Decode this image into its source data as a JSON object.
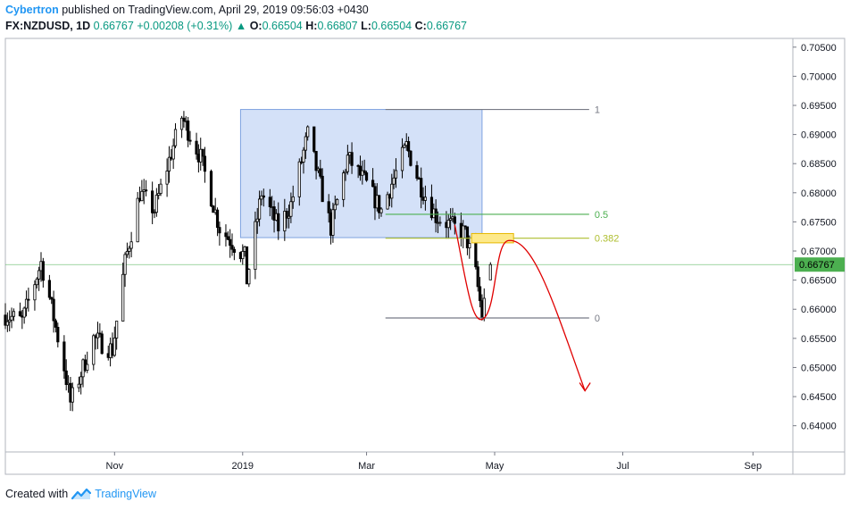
{
  "header": {
    "author": "Cybertron",
    "published_text": "published on TradingView.com, April 29, 2019 09:56:03 +0430",
    "symbol": "FX:NZDUSD, 1D",
    "last": "0.66767",
    "change": "+0.00208 (+0.31%)",
    "open_label": "O:",
    "open": "0.66504",
    "high_label": "H:",
    "high": "0.66807",
    "low_label": "L:",
    "low": "0.66504",
    "close_label": "C:",
    "close": "0.66767"
  },
  "footer": {
    "created_with": "Created with",
    "brand": "TradingView"
  },
  "colors": {
    "candle": "#000000",
    "rect_fill": "#aac4f2",
    "rect_stroke": "#7fa3e0",
    "fib_1": "#787b86",
    "fib_05": "#4caf50",
    "fib_0382": "#aebe2e",
    "fib_0": "#787b86",
    "price_line": "#4caf50",
    "price_badge": "#4caf50",
    "forecast_curve": "#e00000",
    "yellow_box": "#fde98a"
  },
  "chart_data": {
    "type": "candlestick",
    "symbol": "FX:NZDUSD",
    "timeframe": "1D",
    "price_axis": {
      "ticks": [
        "0.70500",
        "0.70000",
        "0.69500",
        "0.69000",
        "0.68500",
        "0.68000",
        "0.67500",
        "0.67000",
        "0.66500",
        "0.66000",
        "0.65500",
        "0.65000",
        "0.64500",
        "0.64000"
      ],
      "ylim": [
        0.6355,
        0.7065
      ],
      "current_price": "0.66767"
    },
    "time_axis": {
      "ticks": [
        {
          "label": "Nov",
          "date": "2018-11-01"
        },
        {
          "label": "2019",
          "date": "2019-01-01"
        },
        {
          "label": "Mar",
          "date": "2019-03-01"
        },
        {
          "label": "May",
          "date": "2019-05-01"
        },
        {
          "label": "Jul",
          "date": "2019-07-01"
        },
        {
          "label": "Sep",
          "date": "2019-09-01"
        }
      ],
      "xlim": [
        "2018-09-10",
        "2019-09-20"
      ]
    },
    "anchors": [
      {
        "date": "2018-09-10",
        "close": 0.659
      },
      {
        "date": "2018-09-18",
        "close": 0.658
      },
      {
        "date": "2018-09-27",
        "close": 0.668
      },
      {
        "date": "2018-10-01",
        "close": 0.662
      },
      {
        "date": "2018-10-08",
        "close": 0.65
      },
      {
        "date": "2018-10-11",
        "close": 0.644
      },
      {
        "date": "2018-10-22",
        "close": 0.655
      },
      {
        "date": "2018-10-31",
        "close": 0.653
      },
      {
        "date": "2018-11-06",
        "close": 0.668
      },
      {
        "date": "2018-11-13",
        "close": 0.68
      },
      {
        "date": "2018-11-20",
        "close": 0.677
      },
      {
        "date": "2018-12-03",
        "close": 0.693
      },
      {
        "date": "2018-12-12",
        "close": 0.686
      },
      {
        "date": "2018-12-21",
        "close": 0.674
      },
      {
        "date": "2019-01-02",
        "close": 0.669
      },
      {
        "date": "2019-01-03",
        "close": 0.665
      },
      {
        "date": "2019-01-10",
        "close": 0.68
      },
      {
        "date": "2019-01-18",
        "close": 0.674
      },
      {
        "date": "2019-01-24",
        "close": 0.678
      },
      {
        "date": "2019-02-01",
        "close": 0.69
      },
      {
        "date": "2019-02-12",
        "close": 0.674
      },
      {
        "date": "2019-02-20",
        "close": 0.686
      },
      {
        "date": "2019-02-28",
        "close": 0.682
      },
      {
        "date": "2019-03-08",
        "close": 0.677
      },
      {
        "date": "2019-03-20",
        "close": 0.688
      },
      {
        "date": "2019-03-27",
        "close": 0.681
      },
      {
        "date": "2019-04-03",
        "close": 0.676
      },
      {
        "date": "2019-04-12",
        "close": 0.674
      },
      {
        "date": "2019-04-17",
        "close": 0.673
      },
      {
        "date": "2019-04-22",
        "close": 0.666
      },
      {
        "date": "2019-04-25",
        "close": 0.659
      },
      {
        "date": "2019-04-29",
        "close": 0.66767
      }
    ],
    "drawings": {
      "range_box": {
        "from": "2018-12-31",
        "to": "2019-04-25",
        "top": 0.6943,
        "bottom": 0.6723
      },
      "fib_levels": [
        {
          "label": "1",
          "price": 0.6943,
          "from": "2019-03-10",
          "to": "2019-06-15"
        },
        {
          "label": "0.5",
          "price": 0.6763,
          "from": "2019-03-10",
          "to": "2019-06-15"
        },
        {
          "label": "0.382",
          "price": 0.6722,
          "from": "2019-03-10",
          "to": "2019-06-15"
        },
        {
          "label": "0",
          "price": 0.6585,
          "from": "2019-03-10",
          "to": "2019-06-15"
        }
      ],
      "target_box": {
        "from": "2019-04-20",
        "to": "2019-05-10",
        "top": 0.673,
        "bottom": 0.6714
      }
    }
  }
}
